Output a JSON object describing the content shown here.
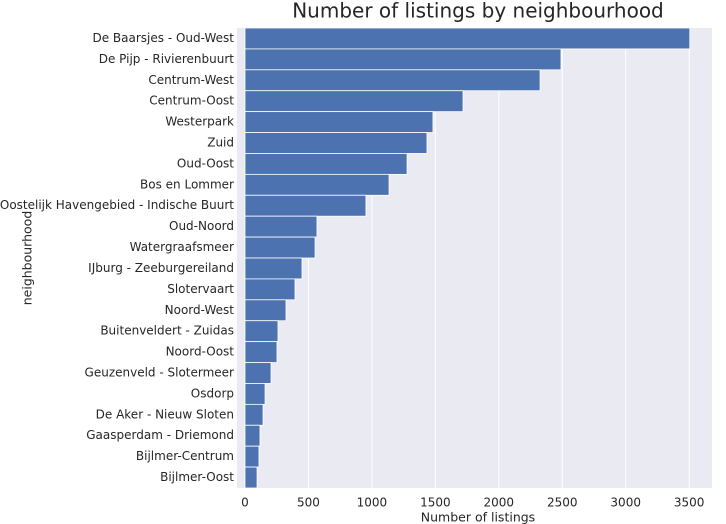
{
  "chart_data": {
    "type": "barh",
    "title": "Number of listings by neighbourhood",
    "xlabel": "Number of listings",
    "ylabel": "neighbourhood",
    "categories": [
      "De Baarsjes - Oud-West",
      "De Pijp - Rivierenbuurt",
      "Centrum-West",
      "Centrum-Oost",
      "Westerpark",
      "Zuid",
      "Oud-Oost",
      "Bos en Lommer",
      "Oostelijk Havengebied - Indische Buurt",
      "Oud-Noord",
      "Watergraafsmeer",
      "IJburg - Zeeburgereiland",
      "Slotervaart",
      "Noord-West",
      "Buitenveldert - Zuidas",
      "Noord-Oost",
      "Geuzenveld - Slotermeer",
      "Osdorp",
      "De Aker - Nieuw Sloten",
      "Gaasperdam - Driemond",
      "Bijlmer-Centrum",
      "Bijlmer-Oost"
    ],
    "values": [
      3505,
      2490,
      2325,
      1718,
      1481,
      1434,
      1277,
      1135,
      953,
      567,
      552,
      449,
      394,
      323,
      260,
      252,
      205,
      158,
      142,
      118,
      110,
      95
    ],
    "color": "#4c72b0",
    "xlim": [
      -63,
      3680
    ],
    "xticks": [
      0,
      500,
      1000,
      1500,
      2000,
      2500,
      3000,
      3500
    ],
    "grid": true
  }
}
